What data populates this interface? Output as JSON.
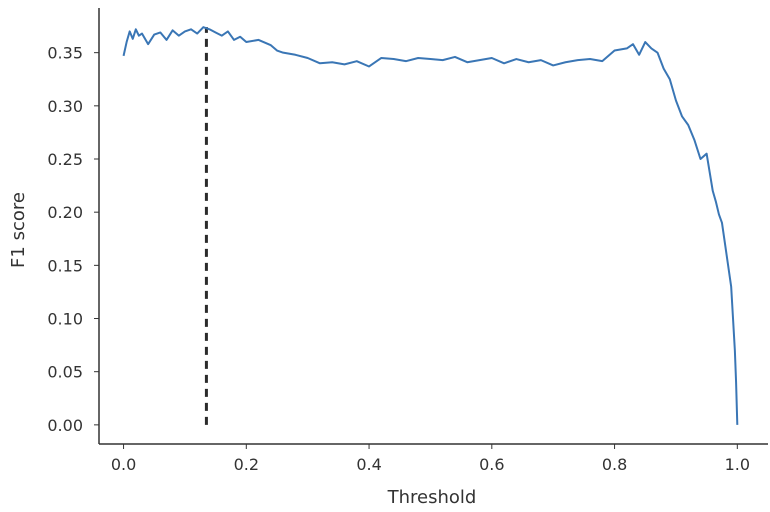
{
  "chart_data": {
    "type": "line",
    "title": "",
    "xlabel": "Threshold",
    "ylabel": "F1 score",
    "xlim": [
      -0.04,
      1.05
    ],
    "ylim": [
      -0.018,
      0.392
    ],
    "grid": false,
    "legend": "none",
    "x_ticks": [
      0.0,
      0.2,
      0.4,
      0.6,
      0.8,
      1.0
    ],
    "x_tick_labels": [
      "0.0",
      "0.2",
      "0.4",
      "0.6",
      "0.8",
      "1.0"
    ],
    "y_ticks": [
      0.0,
      0.05,
      0.1,
      0.15,
      0.2,
      0.25,
      0.3,
      0.35
    ],
    "y_tick_labels": [
      "0.00",
      "0.05",
      "0.10",
      "0.15",
      "0.20",
      "0.25",
      "0.30",
      "0.35"
    ],
    "colors": {
      "series": "#3a76b5",
      "marker_line": "#2b2b2b",
      "axis": "#333333"
    },
    "series": [
      {
        "x": [
          0.0,
          0.005,
          0.01,
          0.015,
          0.02,
          0.025,
          0.03,
          0.04,
          0.05,
          0.06,
          0.07,
          0.08,
          0.09,
          0.1,
          0.11,
          0.12,
          0.13,
          0.14,
          0.15,
          0.16,
          0.17,
          0.18,
          0.19,
          0.2,
          0.22,
          0.24,
          0.25,
          0.26,
          0.28,
          0.3,
          0.32,
          0.34,
          0.36,
          0.38,
          0.4,
          0.42,
          0.44,
          0.46,
          0.48,
          0.5,
          0.52,
          0.54,
          0.56,
          0.58,
          0.6,
          0.62,
          0.64,
          0.66,
          0.68,
          0.7,
          0.72,
          0.74,
          0.76,
          0.78,
          0.8,
          0.82,
          0.83,
          0.84,
          0.85,
          0.86,
          0.87,
          0.88,
          0.89,
          0.9,
          0.91,
          0.92,
          0.93,
          0.94,
          0.95,
          0.96,
          0.965,
          0.97,
          0.975,
          0.98,
          0.985,
          0.99,
          0.993,
          0.996,
          0.998,
          1.0
        ],
        "y": [
          0.347,
          0.36,
          0.37,
          0.363,
          0.372,
          0.366,
          0.368,
          0.358,
          0.367,
          0.369,
          0.362,
          0.371,
          0.366,
          0.37,
          0.372,
          0.368,
          0.374,
          0.372,
          0.369,
          0.366,
          0.37,
          0.362,
          0.365,
          0.36,
          0.362,
          0.357,
          0.352,
          0.35,
          0.348,
          0.345,
          0.34,
          0.341,
          0.339,
          0.342,
          0.337,
          0.345,
          0.344,
          0.342,
          0.345,
          0.344,
          0.343,
          0.346,
          0.341,
          0.343,
          0.345,
          0.34,
          0.344,
          0.341,
          0.343,
          0.338,
          0.341,
          0.343,
          0.344,
          0.342,
          0.352,
          0.354,
          0.358,
          0.348,
          0.36,
          0.354,
          0.35,
          0.335,
          0.325,
          0.305,
          0.29,
          0.282,
          0.268,
          0.25,
          0.255,
          0.22,
          0.21,
          0.198,
          0.19,
          0.17,
          0.15,
          0.13,
          0.1,
          0.07,
          0.04,
          0.0
        ]
      }
    ],
    "vertical_marker": {
      "x": 0.135,
      "y_start": 0.0,
      "y_end": 0.374
    }
  }
}
